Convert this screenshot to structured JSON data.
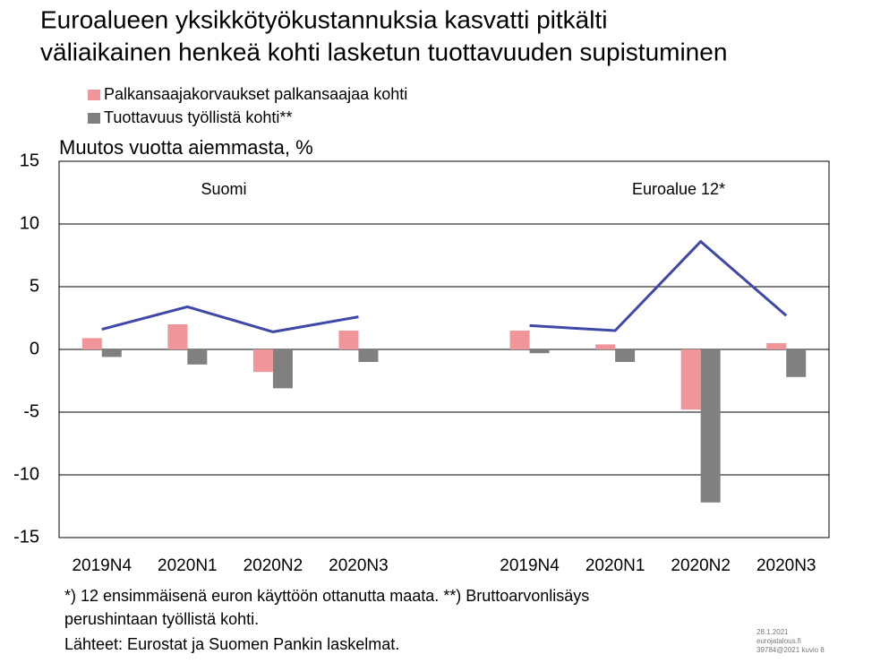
{
  "chart_data": {
    "type": "bar",
    "title": [
      "Euroalueen yksikkötyökustannuksia kasvatti pitkälti",
      "väliaikainen henkeä kohti lasketun tuottavuuden supistuminen"
    ],
    "ylabel": "Muutos vuotta aiemmasta, %",
    "categories": [
      "2019N4",
      "2020N1",
      "2020N2",
      "2020N3",
      null,
      "2019N4",
      "2020N1",
      "2020N2",
      "2020N3"
    ],
    "series": [
      {
        "name": "Palkansaajakorvaukset palkansaajaa kohti",
        "color": "#f0969b",
        "type": "bar",
        "values": [
          0.9,
          2.0,
          -1.8,
          1.5,
          null,
          1.5,
          0.4,
          -4.8,
          0.5
        ]
      },
      {
        "name": "Tuottavuus työllistä kohti**",
        "color": "#808080",
        "type": "bar",
        "values": [
          -0.6,
          -1.2,
          -3.1,
          -1.0,
          null,
          -0.3,
          -1.0,
          -12.2,
          -2.2
        ]
      },
      {
        "color": "#3f48a8",
        "type": "line",
        "values": [
          1.6,
          3.4,
          1.4,
          2.6,
          null,
          1.9,
          1.5,
          8.6,
          2.7
        ]
      }
    ],
    "ylim": [
      -15,
      15
    ],
    "yticks": [
      15,
      10,
      5,
      0,
      -5,
      -10,
      -15
    ],
    "grid": true,
    "annotations": [
      "Suomi",
      "Euroalue 12*"
    ],
    "notes": [
      "*) 12 ensimmäisenä euron käyttöön ottanutta maata. **) Bruttoarvonlisäys",
      "perushintaan työllistä kohti.",
      "Lähteet: Eurostat ja Suomen Pankin laskelmat."
    ],
    "stamp": [
      "28.1.2021",
      "eurojatalous.fi",
      "39784@2021  kuvio 8"
    ]
  }
}
